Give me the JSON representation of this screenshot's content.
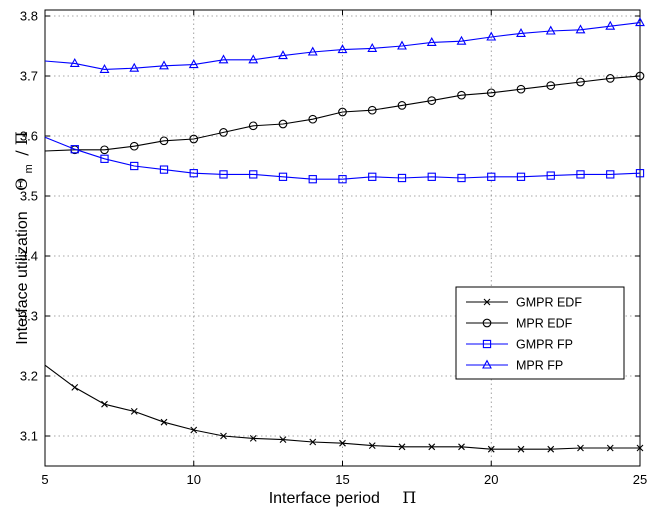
{
  "chart_data": {
    "type": "line",
    "xlabel": "Interface period",
    "xlabel_symbol": "Π",
    "ylabel": "Interface utilization",
    "ylabel_symbol": "Θ",
    "ylabel_subscript": "m",
    "ylabel_suffix": "/ Π",
    "xlim": [
      5,
      25
    ],
    "ylim": [
      3.05,
      3.81
    ],
    "xticks": [
      "5",
      "10",
      "15",
      "20",
      "25"
    ],
    "yticks": [
      "3.1",
      "3.2",
      "3.3",
      "3.4",
      "3.5",
      "3.6",
      "3.7",
      "3.8"
    ],
    "grid": true,
    "legend_position": "lower-right",
    "x": [
      5,
      6,
      7,
      8,
      9,
      10,
      11,
      12,
      13,
      14,
      15,
      16,
      17,
      18,
      19,
      20,
      21,
      22,
      23,
      24,
      25
    ],
    "series": [
      {
        "name": "GMPR EDF",
        "color": "#000000",
        "marker": "x",
        "values": [
          3.218,
          3.181,
          3.153,
          3.141,
          3.123,
          3.11,
          3.1,
          3.096,
          3.094,
          3.09,
          3.088,
          3.084,
          3.082,
          3.082,
          3.082,
          3.078,
          3.078,
          3.078,
          3.08,
          3.08,
          3.08
        ]
      },
      {
        "name": "MPR EDF",
        "color": "#000000",
        "marker": "circle",
        "values": [
          3.575,
          3.577,
          3.577,
          3.583,
          3.592,
          3.595,
          3.606,
          3.617,
          3.62,
          3.628,
          3.64,
          3.643,
          3.651,
          3.659,
          3.668,
          3.672,
          3.678,
          3.684,
          3.69,
          3.696,
          3.7
        ]
      },
      {
        "name": "GMPR FP",
        "color": "#0000ff",
        "marker": "square",
        "values": [
          3.598,
          3.578,
          3.562,
          3.55,
          3.544,
          3.538,
          3.536,
          3.536,
          3.532,
          3.528,
          3.528,
          3.532,
          3.53,
          3.532,
          3.53,
          3.532,
          3.532,
          3.534,
          3.536,
          3.536,
          3.538
        ]
      },
      {
        "name": "MPR FP",
        "color": "#0000ff",
        "marker": "triangle",
        "values": [
          3.725,
          3.721,
          3.711,
          3.713,
          3.717,
          3.719,
          3.727,
          3.727,
          3.734,
          3.74,
          3.744,
          3.746,
          3.75,
          3.756,
          3.758,
          3.765,
          3.771,
          3.775,
          3.777,
          3.783,
          3.789
        ]
      }
    ]
  }
}
